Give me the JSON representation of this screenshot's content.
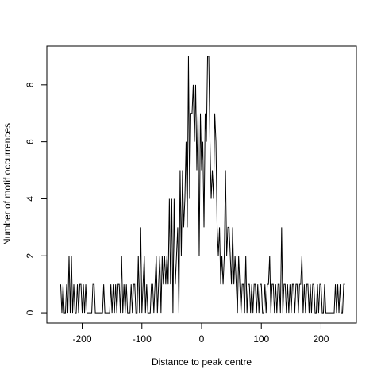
{
  "chart_data": {
    "type": "line",
    "xlabel": "Distance to peak centre",
    "ylabel": "Number of motif occurrences",
    "color": "#000000",
    "xlim": [
      -259.2,
      259.2
    ],
    "xticks": [
      -200,
      -100,
      0,
      100,
      200
    ],
    "ylim": [
      -0.36,
      9.36
    ],
    "yticks": [
      0,
      2,
      4,
      6,
      8
    ],
    "grid": false,
    "x": [
      -236,
      -234,
      -232,
      -230,
      -228,
      -226,
      -224,
      -222,
      -220,
      -218,
      -216,
      -214,
      -212,
      -210,
      -208,
      -206,
      -204,
      -202,
      -200,
      -198,
      -196,
      -194,
      -192,
      -190,
      -188,
      -186,
      -184,
      -182,
      -180,
      -178,
      -176,
      -174,
      -172,
      -170,
      -168,
      -166,
      -164,
      -162,
      -160,
      -158,
      -156,
      -154,
      -152,
      -150,
      -148,
      -146,
      -144,
      -142,
      -140,
      -138,
      -136,
      -134,
      -132,
      -130,
      -128,
      -126,
      -124,
      -122,
      -120,
      -118,
      -116,
      -114,
      -112,
      -110,
      -108,
      -106,
      -104,
      -102,
      -100,
      -98,
      -96,
      -94,
      -92,
      -90,
      -88,
      -86,
      -84,
      -82,
      -80,
      -78,
      -76,
      -74,
      -72,
      -70,
      -68,
      -66,
      -64,
      -62,
      -60,
      -58,
      -56,
      -54,
      -52,
      -50,
      -48,
      -46,
      -44,
      -42,
      -40,
      -38,
      -36,
      -34,
      -32,
      -30,
      -28,
      -26,
      -24,
      -22,
      -20,
      -18,
      -16,
      -14,
      -12,
      -10,
      -8,
      -6,
      -4,
      -2,
      0,
      2,
      4,
      6,
      8,
      10,
      12,
      14,
      16,
      18,
      20,
      22,
      24,
      26,
      28,
      30,
      32,
      34,
      36,
      38,
      40,
      42,
      44,
      46,
      48,
      50,
      52,
      54,
      56,
      58,
      60,
      62,
      64,
      66,
      68,
      70,
      72,
      74,
      76,
      78,
      80,
      82,
      84,
      86,
      88,
      90,
      92,
      94,
      96,
      98,
      100,
      102,
      104,
      106,
      108,
      110,
      112,
      114,
      116,
      118,
      120,
      122,
      124,
      126,
      128,
      130,
      132,
      134,
      136,
      138,
      140,
      142,
      144,
      146,
      148,
      150,
      152,
      154,
      156,
      158,
      160,
      162,
      164,
      166,
      168,
      170,
      172,
      174,
      176,
      178,
      180,
      182,
      184,
      186,
      188,
      190,
      192,
      194,
      196,
      198,
      200,
      202,
      204,
      206,
      208,
      210,
      212,
      214,
      216,
      218,
      220,
      222,
      224,
      226,
      228,
      230,
      232,
      234,
      236,
      238,
      240
    ],
    "values": [
      1,
      0,
      1,
      0,
      0,
      1,
      0,
      2,
      0,
      2,
      0,
      1,
      0,
      0,
      1,
      0,
      1,
      1,
      0,
      1,
      0,
      1,
      0,
      0,
      0,
      0,
      0,
      1,
      1,
      0,
      0,
      0,
      0,
      0,
      0,
      0,
      1,
      0,
      0,
      0,
      0,
      0,
      1,
      0,
      1,
      0,
      1,
      0,
      1,
      1,
      0,
      2,
      0,
      1,
      0,
      1,
      0,
      0,
      0,
      1,
      0,
      1,
      1,
      0,
      0,
      2,
      0,
      3,
      0,
      1,
      2,
      0,
      1,
      0,
      0,
      0,
      1,
      1,
      0,
      1,
      2,
      0,
      1,
      2,
      0,
      2,
      1,
      2,
      1,
      2,
      1,
      4,
      1,
      4,
      0,
      4,
      1,
      2,
      3,
      0,
      5,
      2,
      5,
      3,
      4,
      6,
      3,
      9,
      4,
      7,
      7,
      8,
      6,
      8,
      5,
      7,
      2,
      7,
      5,
      6,
      3,
      7,
      6,
      9,
      9,
      6,
      4,
      5,
      4,
      7,
      6,
      3,
      2,
      3,
      1,
      2,
      1,
      2,
      5,
      2,
      3,
      3,
      2,
      1,
      3,
      1,
      2,
      1,
      0,
      2,
      1,
      0,
      1,
      1,
      0,
      2,
      0,
      1,
      1,
      0,
      1,
      0,
      1,
      1,
      0,
      1,
      0,
      1,
      1,
      0,
      0,
      1,
      0,
      1,
      1,
      2,
      0,
      1,
      1,
      0,
      1,
      0,
      1,
      1,
      0,
      3,
      0,
      1,
      1,
      0,
      1,
      0,
      1,
      0,
      1,
      1,
      0,
      1,
      1,
      0,
      1,
      1,
      2,
      0,
      1,
      0,
      1,
      1,
      0,
      1,
      0,
      1,
      1,
      0,
      0,
      1,
      0,
      1,
      1,
      0,
      0,
      1,
      0,
      0,
      0,
      0,
      0,
      0,
      0,
      0,
      1,
      0,
      1,
      0,
      1,
      0,
      0,
      1,
      1
    ]
  }
}
